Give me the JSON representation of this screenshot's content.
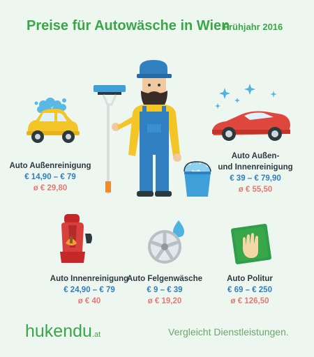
{
  "header": {
    "title": "Preise für Autowäsche in Wien",
    "subtitle": "Frühjahr 2016"
  },
  "services": [
    {
      "name": "Auto Außenreinigung",
      "range": "€ 14,90 – € 79",
      "avg": "ø  € 29,80"
    },
    {
      "name_line1": "Auto Außen-",
      "name_line2": "und Innenreinigung",
      "range": "€ 39 – € 79,90",
      "avg": "ø  € 55,50"
    },
    {
      "name": "Auto Innenreinigung",
      "range": "€ 24,90 – € 79",
      "avg": "ø  € 40"
    },
    {
      "name": "Auto Felgenwäsche",
      "range": "€ 9 – € 39",
      "avg": "ø  € 19,20"
    },
    {
      "name": "Auto Politur",
      "range": "€ 69 – € 250",
      "avg": "ø  € 126,50"
    }
  ],
  "footer": {
    "brand": "hukendu",
    "brand_tld": ".at",
    "tagline": "Vergleicht Dienstleistungen."
  },
  "colors": {
    "background": "#eef6f0",
    "title_green": "#3aa64a",
    "range_blue": "#2f7fc1",
    "avg_red": "#e27a74"
  },
  "icons": [
    "small-yellow-car-with-foam-icon",
    "worker-with-brush-icon",
    "foam-bucket-icon",
    "red-sports-car-icon",
    "car-seat-icon",
    "wheel-rim-icon",
    "polishing-cloth-icon"
  ]
}
